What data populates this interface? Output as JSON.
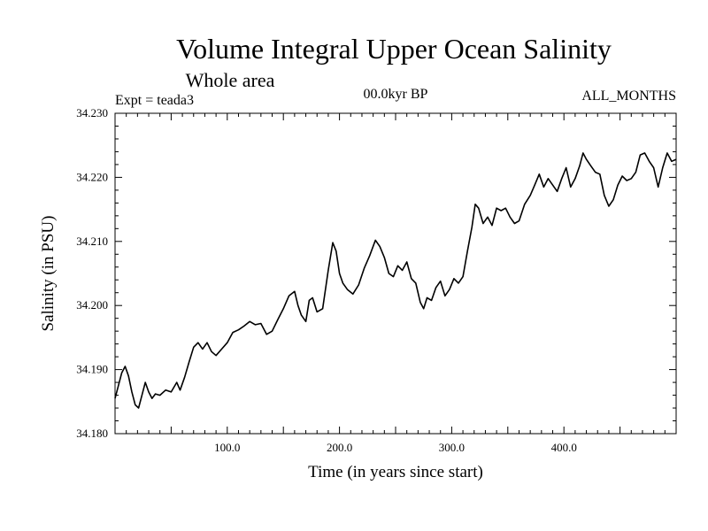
{
  "chart_data": {
    "type": "line",
    "title": "Volume Integral Upper Ocean Salinity",
    "subtitle": "Whole area",
    "experiment": "Expt = teada3",
    "period": "00.0kyr BP",
    "months": "ALL_MONTHS",
    "xlabel": "Time (in years since start)",
    "ylabel": "Salinity (in PSU)",
    "xlim": [
      0,
      500
    ],
    "ylim": [
      34.18,
      34.23
    ],
    "x_ticks": [
      100,
      200,
      300,
      400
    ],
    "x_tick_labels": [
      "100.0",
      "200.0",
      "300.0",
      "400.0"
    ],
    "y_ticks": [
      34.18,
      34.19,
      34.2,
      34.21,
      34.22,
      34.23
    ],
    "y_tick_labels": [
      "34.180",
      "34.190",
      "34.200",
      "34.210",
      "34.220",
      "34.230"
    ],
    "series": [
      {
        "name": "Salinity",
        "color": "#000000",
        "x": [
          0,
          3,
          6,
          9,
          12,
          15,
          18,
          21,
          24,
          27,
          30,
          33,
          36,
          40,
          45,
          50,
          55,
          58,
          62,
          66,
          70,
          74,
          78,
          82,
          86,
          90,
          95,
          100,
          105,
          110,
          115,
          120,
          125,
          130,
          135,
          140,
          145,
          150,
          155,
          160,
          163,
          166,
          170,
          173,
          176,
          180,
          185,
          190,
          194,
          197,
          200,
          203,
          207,
          212,
          217,
          222,
          227,
          232,
          236,
          240,
          244,
          248,
          252,
          256,
          260,
          264,
          268,
          272,
          275,
          278,
          282,
          286,
          290,
          294,
          298,
          302,
          306,
          310,
          314,
          318,
          321,
          324,
          328,
          332,
          336,
          340,
          344,
          348,
          352,
          356,
          360,
          365,
          370,
          374,
          378,
          382,
          386,
          390,
          394,
          398,
          402,
          406,
          410,
          414,
          417,
          420,
          424,
          428,
          432,
          436,
          440,
          444,
          448,
          452,
          456,
          460,
          464,
          468,
          472,
          476,
          480,
          484,
          488,
          492,
          496,
          500
        ],
        "y": [
          34.1855,
          34.1875,
          34.1895,
          34.1905,
          34.189,
          34.1865,
          34.1845,
          34.184,
          34.186,
          34.188,
          34.1865,
          34.1855,
          34.1862,
          34.186,
          34.1868,
          34.1865,
          34.188,
          34.1868,
          34.1888,
          34.1912,
          34.1935,
          34.1942,
          34.1932,
          34.1942,
          34.1928,
          34.1922,
          34.1932,
          34.1942,
          34.1958,
          34.1962,
          34.1968,
          34.1975,
          34.197,
          34.1972,
          34.1955,
          34.196,
          34.1978,
          34.1995,
          34.2015,
          34.2022,
          34.2,
          34.1985,
          34.1975,
          34.2008,
          34.2012,
          34.199,
          34.1995,
          34.2055,
          34.2098,
          34.2085,
          34.205,
          34.2035,
          34.2025,
          34.2018,
          34.2032,
          34.2058,
          34.2078,
          34.2102,
          34.2092,
          34.2075,
          34.205,
          34.2045,
          34.2062,
          34.2055,
          34.2068,
          34.2042,
          34.2035,
          34.2005,
          34.1995,
          34.2012,
          34.2008,
          34.2028,
          34.2038,
          34.2015,
          34.2025,
          34.2042,
          34.2035,
          34.2045,
          34.2085,
          34.2122,
          34.2158,
          34.2152,
          34.2128,
          34.2138,
          34.2125,
          34.2152,
          34.2148,
          34.2152,
          34.2138,
          34.2128,
          34.2132,
          34.2158,
          34.2172,
          34.2188,
          34.2205,
          34.2185,
          34.2198,
          34.2188,
          34.2178,
          34.2198,
          34.2215,
          34.2185,
          34.2198,
          34.2218,
          34.2238,
          34.2228,
          34.2218,
          34.2208,
          34.2205,
          34.2172,
          34.2155,
          34.2165,
          34.2188,
          34.2202,
          34.2195,
          34.2198,
          34.2208,
          34.2235,
          34.2238,
          34.2225,
          34.2215,
          34.2185,
          34.2215,
          34.2238,
          34.2225,
          34.2228
        ]
      }
    ]
  }
}
